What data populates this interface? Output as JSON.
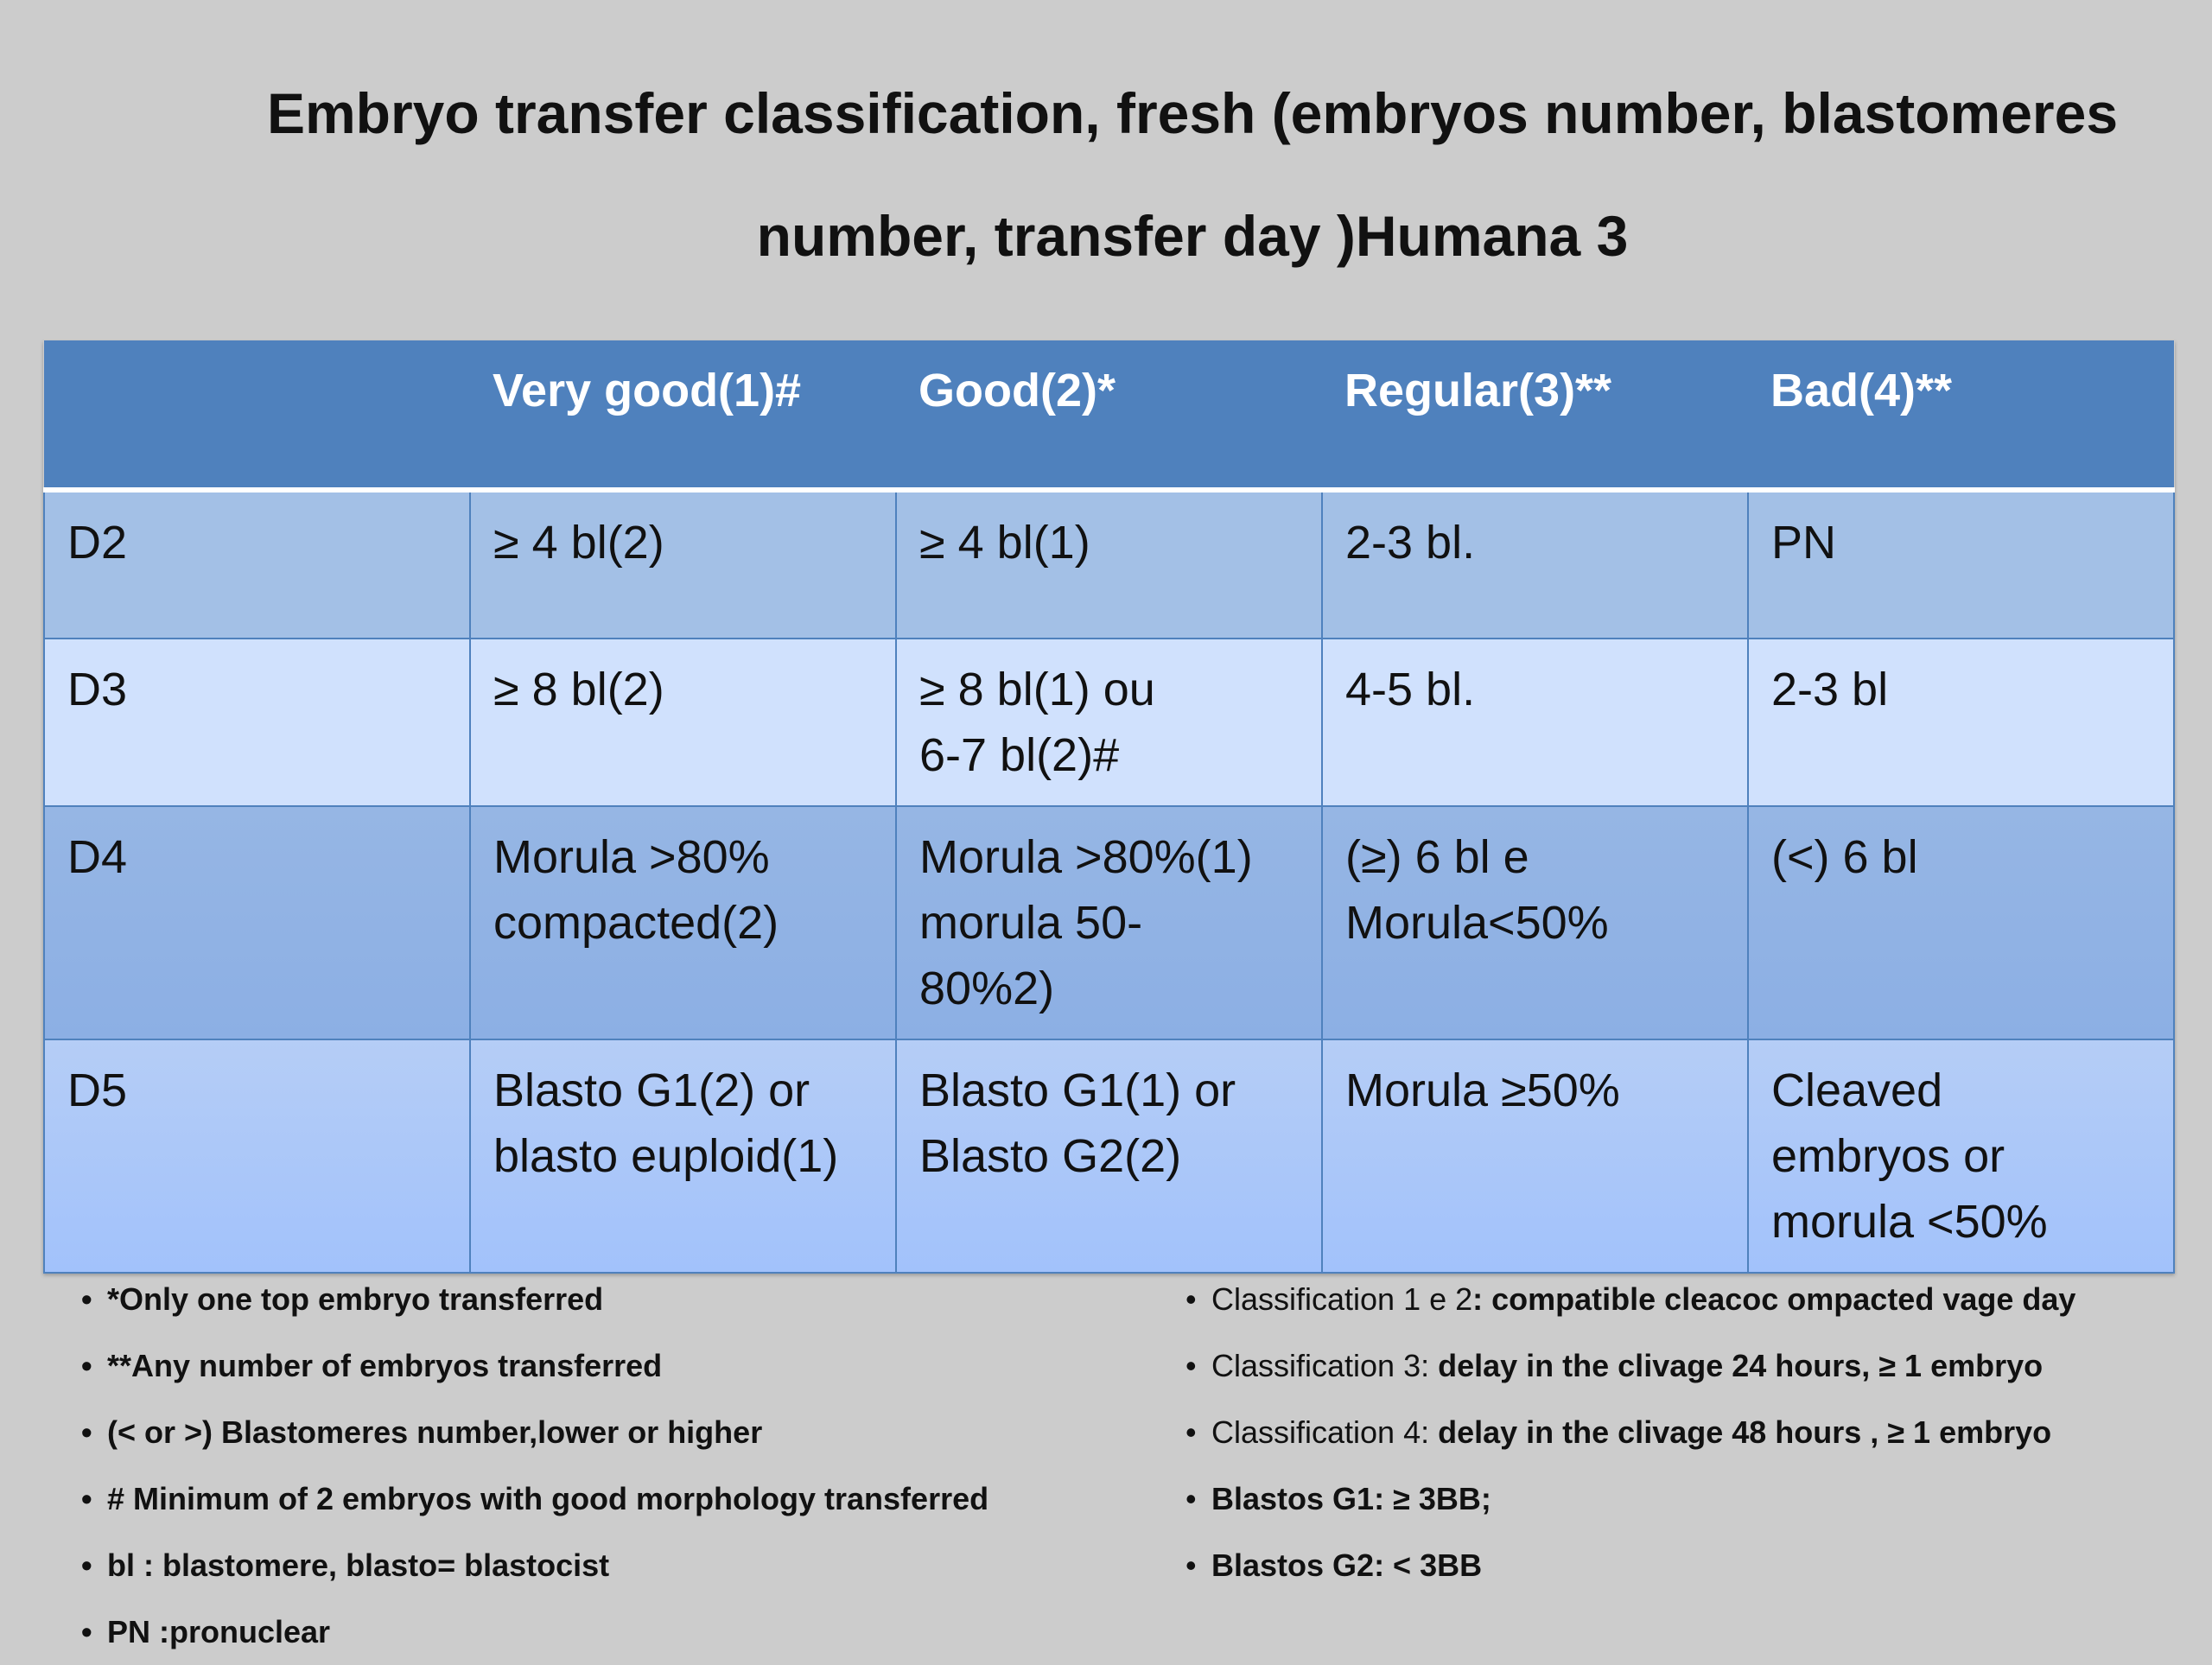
{
  "title": {
    "line1": "Embryo transfer classification, fresh (embryos number, blastomeres",
    "line2": "number, transfer day )Humana 3"
  },
  "table": {
    "headers": [
      "",
      "Very good(1)#",
      "Good(2)*",
      "Regular(3)**",
      "Bad(4)**"
    ],
    "rows": [
      {
        "day": "D2",
        "very_good": "≥ 4 bl(2)",
        "good": "≥ 4 bl(1)",
        "regular": " 2-3 bl.",
        "bad": "PN"
      },
      {
        "day": "D3",
        "very_good": "≥ 8 bl(2)",
        "good": "≥ 8 bl(1) ou\n6-7 bl(2)#",
        "regular": "4-5 bl.",
        "bad": "2-3 bl"
      },
      {
        "day": "D4",
        "very_good": "Morula >80%\ncompacted(2)",
        "good": "Morula >80%(1)\nmorula 50-\n80%2)",
        "regular": "(≥) 6 bl e\nMorula<50%",
        "bad": "(<) 6 bl"
      },
      {
        "day": "D5",
        "very_good": "Blasto G1(2) or\nblasto euploid(1)",
        "good": "Blasto G1(1) or\nBlasto G2(2)",
        "regular": "Morula ≥50%",
        "bad": "Cleaved\nembryos or\nmorula <50%"
      }
    ]
  },
  "notes_left": [
    "*Only one top embryo transferred",
    "**Any number of  embryos transferred",
    "(< or >) Blastomeres number,lower or higher",
    "# Minimum of 2 embryos with good morphology transferred",
    "bl : blastomere, blasto= blastocist",
    "PN :pronuclear"
  ],
  "notes_right": [
    {
      "label": "Classification 1 e 2",
      "text": ": compatible cleacoc ompacted vage day"
    },
    {
      "label": "Classification 3: ",
      "text": "delay in the clivage 24 hours, ≥ 1 embryo"
    },
    {
      "label": "Classification 4: ",
      "text": "delay in the clivage 48 hours , ≥ 1 embryo"
    },
    {
      "label": "",
      "text": "Blastos G1:  ≥ 3BB;"
    },
    {
      "label": "",
      "text": "Blastos G2:   < 3BB"
    }
  ],
  "bullet": "•"
}
